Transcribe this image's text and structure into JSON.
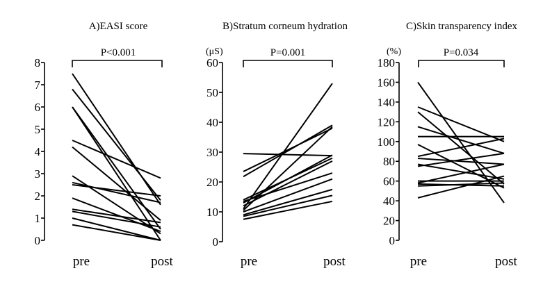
{
  "chart_data": [
    {
      "type": "line",
      "title": "A)EASI score",
      "xlabel": "",
      "ylabel": "",
      "categories": [
        "pre",
        "post"
      ],
      "ylim": [
        0,
        8
      ],
      "yticks": [
        "0",
        "1",
        "2",
        "3",
        "4",
        "5",
        "6",
        "7",
        "8"
      ],
      "annotation": "P<0.001",
      "series": [
        {
          "values": [
            7.5,
            1.6
          ]
        },
        {
          "values": [
            6.8,
            1.8
          ]
        },
        {
          "values": [
            6.0,
            0.5
          ]
        },
        {
          "values": [
            6.0,
            0.0
          ]
        },
        {
          "values": [
            4.5,
            2.8
          ]
        },
        {
          "values": [
            4.2,
            0.9
          ]
        },
        {
          "values": [
            2.9,
            0.3
          ]
        },
        {
          "values": [
            2.6,
            1.7
          ]
        },
        {
          "values": [
            2.5,
            2.0
          ]
        },
        {
          "values": [
            1.9,
            0.4
          ]
        },
        {
          "values": [
            1.4,
            0.8
          ]
        },
        {
          "values": [
            1.3,
            0.6
          ]
        },
        {
          "values": [
            1.0,
            0.0
          ]
        },
        {
          "values": [
            0.7,
            0.0
          ]
        }
      ]
    },
    {
      "type": "line",
      "title": "B)Stratum corneum hydration",
      "xlabel": "",
      "ylabel": "(μS)",
      "categories": [
        "pre",
        "post"
      ],
      "ylim": [
        0,
        60
      ],
      "yticks": [
        "0",
        "10",
        "20",
        "30",
        "40",
        "50",
        "60"
      ],
      "annotation": "P=0.001",
      "series": [
        {
          "values": [
            29.5,
            28.8
          ]
        },
        {
          "values": [
            23.5,
            38.0
          ]
        },
        {
          "values": [
            21.8,
            39.0
          ]
        },
        {
          "values": [
            14.0,
            28.0
          ]
        },
        {
          "values": [
            13.5,
            23.0
          ]
        },
        {
          "values": [
            13.0,
            29.0
          ]
        },
        {
          "values": [
            12.0,
            27.0
          ]
        },
        {
          "values": [
            11.0,
            53.0
          ]
        },
        {
          "values": [
            10.5,
            38.5
          ]
        },
        {
          "values": [
            10.0,
            21.0
          ]
        },
        {
          "values": [
            9.0,
            17.5
          ]
        },
        {
          "values": [
            8.5,
            15.5
          ]
        },
        {
          "values": [
            7.5,
            13.5
          ]
        }
      ]
    },
    {
      "type": "line",
      "title": "C)Skin transparency index",
      "xlabel": "",
      "ylabel": "(%)",
      "categories": [
        "pre",
        "post"
      ],
      "ylim": [
        0,
        180
      ],
      "yticks": [
        "0",
        "20",
        "40",
        "60",
        "80",
        "100",
        "120",
        "140",
        "160",
        "180"
      ],
      "annotation": "P=0.034",
      "series": [
        {
          "values": [
            160,
            38
          ]
        },
        {
          "values": [
            135,
            100
          ]
        },
        {
          "values": [
            130,
            57
          ]
        },
        {
          "values": [
            115,
            88
          ]
        },
        {
          "values": [
            105,
            105
          ]
        },
        {
          "values": [
            97,
            53
          ]
        },
        {
          "values": [
            85,
            103
          ]
        },
        {
          "values": [
            83,
            77
          ]
        },
        {
          "values": [
            77,
            62
          ]
        },
        {
          "values": [
            75,
            88
          ]
        },
        {
          "values": [
            60,
            60
          ]
        },
        {
          "values": [
            58,
            77
          ]
        },
        {
          "values": [
            57,
            55
          ]
        },
        {
          "values": [
            55,
            58
          ]
        },
        {
          "values": [
            43,
            65
          ]
        }
      ]
    }
  ]
}
